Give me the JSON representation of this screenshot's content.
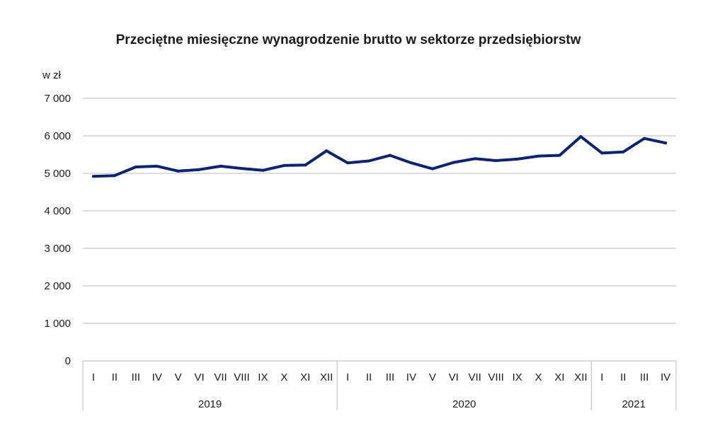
{
  "chart_data": {
    "type": "line",
    "title": "Przeciętne miesięczne wynagrodzenie brutto w sektorze przedsiębiorstw",
    "ylabel": "w zł",
    "ylim": [
      0,
      7000
    ],
    "yticks": [
      0,
      1000,
      2000,
      3000,
      4000,
      5000,
      6000,
      7000
    ],
    "ytick_labels": [
      "0",
      "1 000",
      "2 000",
      "3 000",
      "4 000",
      "5 000",
      "6 000",
      "7 000"
    ],
    "grid": true,
    "colors": {
      "series": "#0b2370",
      "grid": "#c8c8c8"
    },
    "year_groups": [
      {
        "label": "2019",
        "months": [
          "I",
          "II",
          "III",
          "IV",
          "V",
          "VI",
          "VII",
          "VIII",
          "IX",
          "X",
          "XI",
          "XII"
        ]
      },
      {
        "label": "2020",
        "months": [
          "I",
          "II",
          "III",
          "IV",
          "V",
          "VI",
          "VII",
          "VIII",
          "IX",
          "X",
          "XI",
          "XII"
        ]
      },
      {
        "label": "2021",
        "months": [
          "I",
          "II",
          "III",
          "IV"
        ]
      }
    ],
    "values": [
      4920,
      4940,
      5170,
      5190,
      5060,
      5100,
      5190,
      5130,
      5080,
      5210,
      5220,
      5600,
      5280,
      5330,
      5480,
      5280,
      5120,
      5290,
      5390,
      5340,
      5380,
      5460,
      5480,
      5980,
      5540,
      5570,
      5930,
      5810
    ]
  }
}
